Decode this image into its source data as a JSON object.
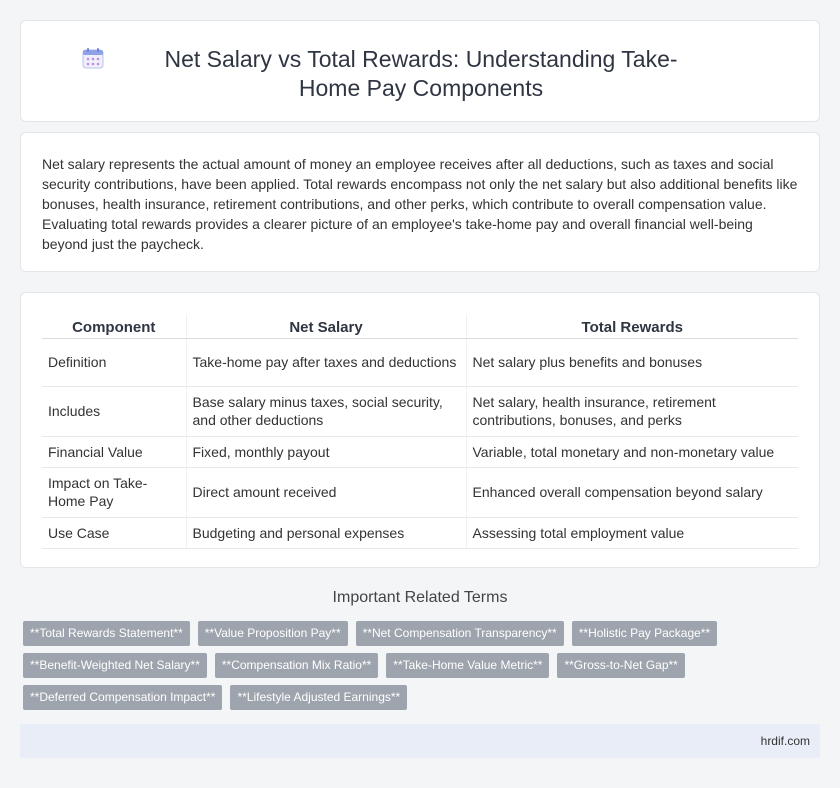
{
  "header": {
    "title": "Net Salary vs Total Rewards: Understanding Take-Home Pay Components",
    "icon": "calendar-icon"
  },
  "intro": {
    "text": "Net salary represents the actual amount of money an employee receives after all deductions, such as taxes and social security contributions, have been applied. Total rewards encompass not only the net salary but also additional benefits like bonuses, health insurance, retirement contributions, and other perks, which contribute to overall compensation value. Evaluating total rewards provides a clearer picture of an employee's take-home pay and overall financial well-being beyond just the paycheck."
  },
  "table": {
    "headers": [
      "Component",
      "Net Salary",
      "Total Rewards"
    ],
    "rows": [
      [
        "Definition",
        "Take-home pay after taxes and deductions",
        "Net salary plus benefits and bonuses"
      ],
      [
        "Includes",
        "Base salary minus taxes, social security, and other deductions",
        "Net salary, health insurance, retirement contributions, bonuses, and perks"
      ],
      [
        "Financial Value",
        "Fixed, monthly payout",
        "Variable, total monetary and non-monetary value"
      ],
      [
        "Impact on Take-Home Pay",
        "Direct amount received",
        "Enhanced overall compensation beyond salary"
      ],
      [
        "Use Case",
        "Budgeting and personal expenses",
        "Assessing total employment value"
      ]
    ]
  },
  "related": {
    "heading": "Important Related Terms",
    "tags": [
      "**Total Rewards Statement**",
      "**Value Proposition Pay**",
      "**Net Compensation Transparency**",
      "**Holistic Pay Package**",
      "**Benefit-Weighted Net Salary**",
      "**Compensation Mix Ratio**",
      "**Take-Home Value Metric**",
      "**Gross-to-Net Gap**",
      "**Deferred Compensation Impact**",
      "**Lifestyle Adjusted Earnings**"
    ]
  },
  "footer": {
    "text": "hrdif.com"
  },
  "colors": {
    "tag_bg": "#9ea4ad",
    "footer_bg": "#e8edf7",
    "icon_accent": "#7b8fe0"
  }
}
